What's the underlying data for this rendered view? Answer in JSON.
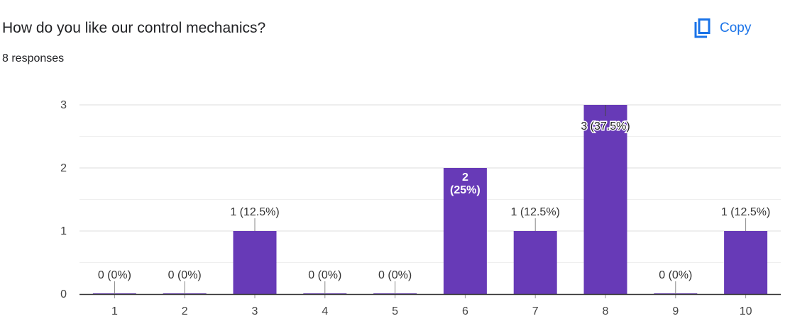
{
  "header": {
    "question": "How do you like our control mechanics?",
    "responses": "8 responses",
    "copy_label": "Copy",
    "copy_icon": "copy-icon"
  },
  "colors": {
    "bar": "#673ab7",
    "accent": "#1a73e8",
    "grid": "#e8e8e8",
    "axis": "#333333",
    "text": "#202124"
  },
  "chart_data": {
    "type": "bar",
    "categories": [
      "1",
      "2",
      "3",
      "4",
      "5",
      "6",
      "7",
      "8",
      "9",
      "10"
    ],
    "values": [
      0,
      0,
      1,
      0,
      0,
      2,
      1,
      3,
      0,
      1
    ],
    "data_labels": [
      "0 (0%)",
      "0 (0%)",
      "1 (12.5%)",
      "0 (0%)",
      "0 (0%)",
      "2 (25%)",
      "1 (12.5%)",
      "3 (37.5%)",
      "0 (0%)",
      "1 (12.5%)"
    ],
    "y_ticks": [
      "0",
      "1",
      "2",
      "3"
    ],
    "ylim": [
      0,
      3
    ],
    "title": "",
    "xlabel": "",
    "ylabel": "",
    "grid": true
  }
}
